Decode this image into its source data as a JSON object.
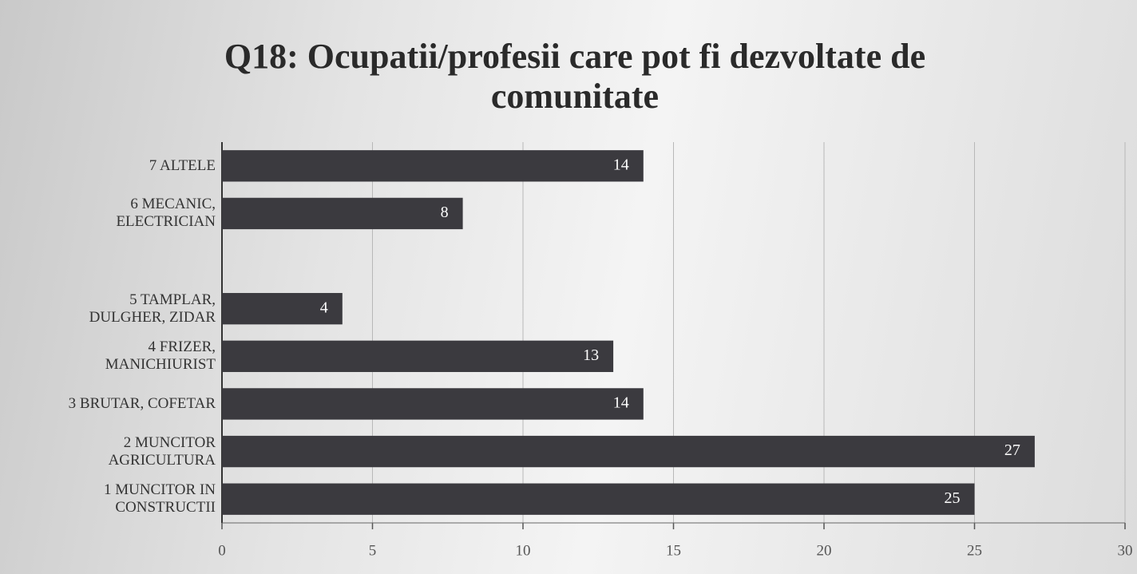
{
  "chart_data": {
    "type": "barh",
    "title": "Q18: Ocupatii/profesii care pot fi dezvoltate de comunitate",
    "categories": [
      "7 ALTELE",
      "6 MECANIC, ELECTRICIAN",
      null,
      "5 TAMPLAR, DULGHER, ZIDAR",
      "4 FRIZER, MANICHIURIST",
      "3 BRUTAR, COFETAR",
      "2 MUNCITOR AGRICULTURA",
      "1 MUNCITOR IN CONSTRUCTII"
    ],
    "values": [
      14,
      8,
      null,
      4,
      13,
      14,
      27,
      25
    ],
    "color": "#3b3a3f",
    "xlim": [
      0,
      30
    ],
    "xticks": [
      0,
      5,
      10,
      15,
      20,
      25,
      30
    ],
    "grid": true
  }
}
